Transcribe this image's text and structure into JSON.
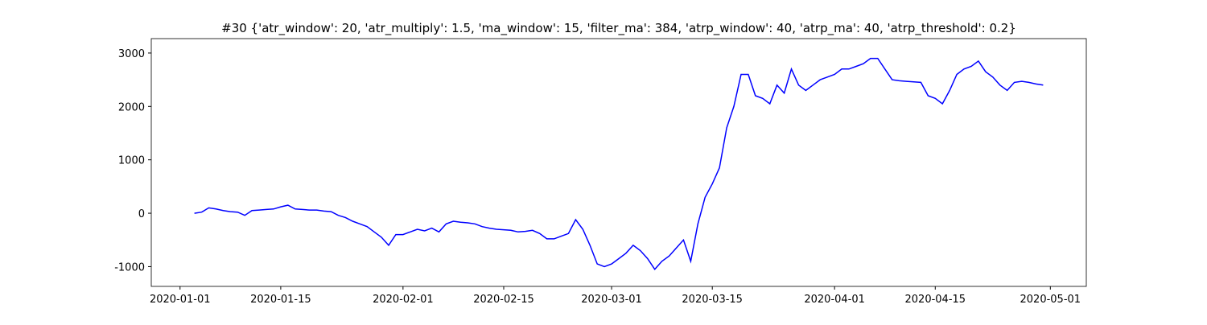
{
  "chart_data": {
    "type": "line",
    "title": "#30 {'atr_window': 20, 'atr_multiply': 1.5, 'ma_window': 15, 'filter_ma': 384, 'atrp_window': 40, 'atrp_ma': 40, 'atrp_threshold': 0.2}",
    "color": "#0000ff",
    "x": [
      "2020-01-03",
      "2020-01-04",
      "2020-01-05",
      "2020-01-06",
      "2020-01-07",
      "2020-01-08",
      "2020-01-09",
      "2020-01-10",
      "2020-01-11",
      "2020-01-12",
      "2020-01-13",
      "2020-01-14",
      "2020-01-15",
      "2020-01-16",
      "2020-01-17",
      "2020-01-18",
      "2020-01-19",
      "2020-01-20",
      "2020-01-21",
      "2020-01-22",
      "2020-01-23",
      "2020-01-24",
      "2020-01-25",
      "2020-01-26",
      "2020-01-27",
      "2020-01-28",
      "2020-01-29",
      "2020-01-30",
      "2020-01-31",
      "2020-02-01",
      "2020-02-02",
      "2020-02-03",
      "2020-02-04",
      "2020-02-05",
      "2020-02-06",
      "2020-02-07",
      "2020-02-08",
      "2020-02-09",
      "2020-02-10",
      "2020-02-11",
      "2020-02-12",
      "2020-02-13",
      "2020-02-14",
      "2020-02-15",
      "2020-02-16",
      "2020-02-17",
      "2020-02-18",
      "2020-02-19",
      "2020-02-20",
      "2020-02-21",
      "2020-02-22",
      "2020-02-23",
      "2020-02-24",
      "2020-02-25",
      "2020-02-26",
      "2020-02-27",
      "2020-02-28",
      "2020-02-29",
      "2020-03-01",
      "2020-03-02",
      "2020-03-03",
      "2020-03-04",
      "2020-03-05",
      "2020-03-06",
      "2020-03-07",
      "2020-03-08",
      "2020-03-09",
      "2020-03-10",
      "2020-03-11",
      "2020-03-12",
      "2020-03-13",
      "2020-03-14",
      "2020-03-15",
      "2020-03-16",
      "2020-03-17",
      "2020-03-18",
      "2020-03-19",
      "2020-03-20",
      "2020-03-21",
      "2020-03-22",
      "2020-03-23",
      "2020-03-24",
      "2020-03-25",
      "2020-03-26",
      "2020-03-27",
      "2020-03-28",
      "2020-03-29",
      "2020-03-30",
      "2020-03-31",
      "2020-04-01",
      "2020-04-02",
      "2020-04-03",
      "2020-04-04",
      "2020-04-05",
      "2020-04-06",
      "2020-04-07",
      "2020-04-08",
      "2020-04-09",
      "2020-04-10",
      "2020-04-11",
      "2020-04-12",
      "2020-04-13",
      "2020-04-14",
      "2020-04-15",
      "2020-04-16",
      "2020-04-17",
      "2020-04-18",
      "2020-04-19",
      "2020-04-20",
      "2020-04-21",
      "2020-04-22",
      "2020-04-23",
      "2020-04-24",
      "2020-04-25",
      "2020-04-26",
      "2020-04-27",
      "2020-04-28",
      "2020-04-29",
      "2020-04-30"
    ],
    "values": [
      0,
      20,
      100,
      80,
      50,
      30,
      20,
      -40,
      50,
      60,
      70,
      80,
      120,
      150,
      80,
      70,
      60,
      60,
      40,
      30,
      -40,
      -80,
      -150,
      -200,
      -250,
      -350,
      -450,
      -600,
      -400,
      -400,
      -350,
      -300,
      -330,
      -280,
      -350,
      -200,
      -150,
      -170,
      -180,
      -200,
      -250,
      -280,
      -300,
      -310,
      -320,
      -350,
      -340,
      -320,
      -380,
      -480,
      -480,
      -430,
      -380,
      -120,
      -300,
      -600,
      -950,
      -1000,
      -950,
      -850,
      -750,
      -600,
      -700,
      -850,
      -1050,
      -900,
      -800,
      -650,
      -500,
      -900,
      -200,
      300,
      550,
      850,
      1600,
      2000,
      2600,
      2600,
      2200,
      2150,
      2050,
      2400,
      2250,
      2700,
      2400,
      2300,
      2400,
      2500,
      2550,
      2600,
      2700,
      2700,
      2750,
      2800,
      2900,
      2900,
      2700,
      2500,
      2480,
      2470,
      2460,
      2450,
      2200,
      2150,
      2050,
      2300,
      2600,
      2700,
      2750,
      2850,
      2650,
      2550,
      2400,
      2300,
      2450,
      2470,
      2450,
      2420,
      2400
    ],
    "xlim": [
      "2019-12-28",
      "2020-05-06"
    ],
    "xticks": [
      "2020-01-01",
      "2020-01-15",
      "2020-02-01",
      "2020-02-15",
      "2020-03-01",
      "2020-03-15",
      "2020-04-01",
      "2020-04-15",
      "2020-05-01"
    ],
    "ylim": [
      -1370,
      3270
    ],
    "yticks": [
      -1000,
      0,
      1000,
      2000,
      3000
    ]
  }
}
